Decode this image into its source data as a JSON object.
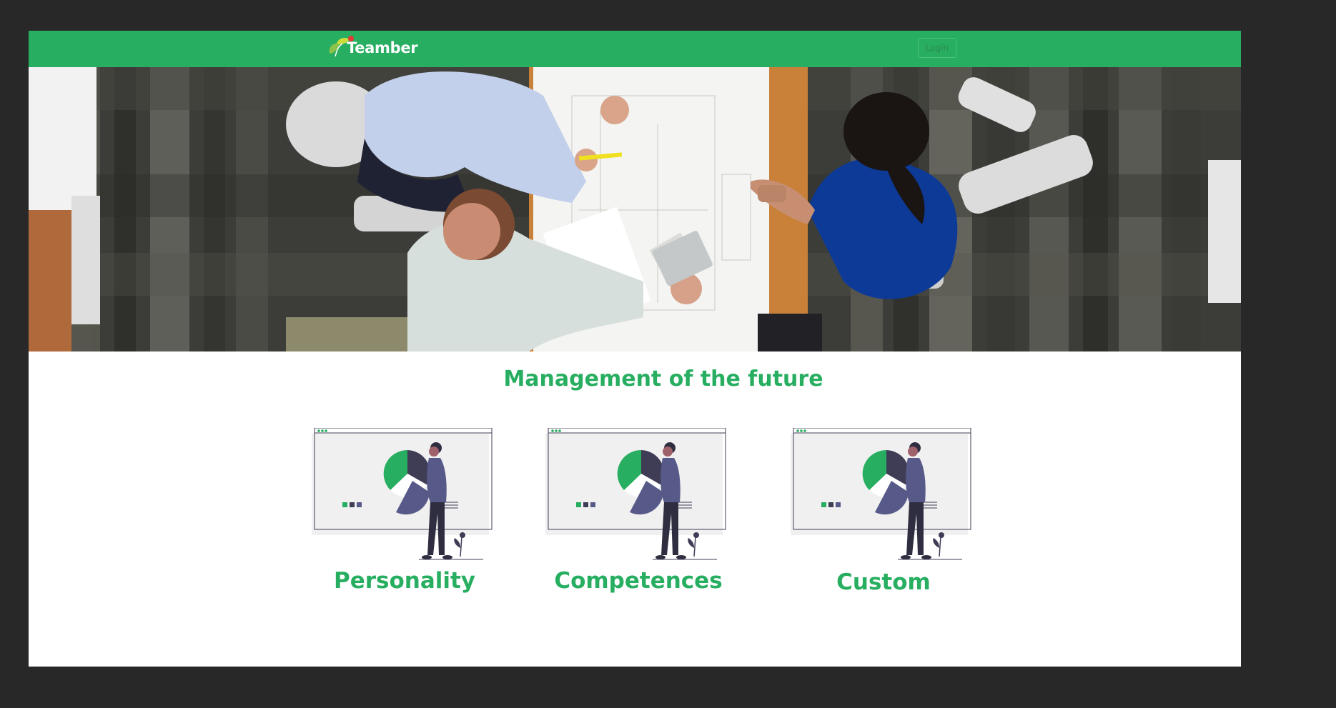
{
  "header": {
    "brand": "Teamber",
    "login_label": "Login"
  },
  "main": {
    "title": "Management of the future",
    "cards": [
      {
        "label": "Personality"
      },
      {
        "label": "Competences"
      },
      {
        "label": "Custom"
      }
    ]
  },
  "icons": {
    "logo": "leaf-logo-icon",
    "illustration": "pie-chart-presentation-illustration"
  },
  "colors": {
    "brand_green": "#27ae60",
    "background": "#282828",
    "illustration_dark": "#3f3d56",
    "illustration_purple": "#575a89"
  }
}
